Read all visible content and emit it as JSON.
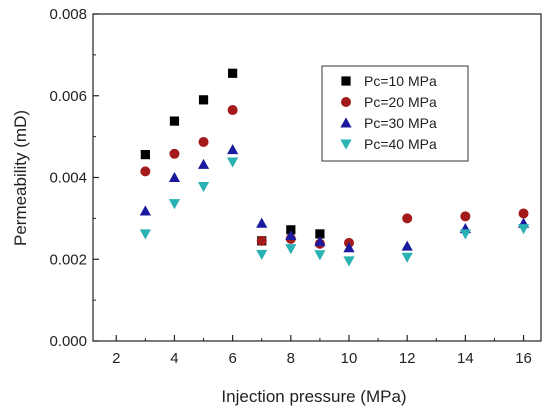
{
  "chart_data": {
    "type": "scatter",
    "title": "",
    "xlabel": "Injection pressure (MPa)",
    "ylabel": "Permeability (mD)",
    "xlim": [
      1.2,
      16.6
    ],
    "ylim": [
      0.0,
      0.008
    ],
    "xticks": [
      2,
      4,
      6,
      8,
      10,
      12,
      14,
      16
    ],
    "yticks": [
      0.0,
      0.002,
      0.004,
      0.006,
      0.008
    ],
    "ytick_labels": [
      "0.000",
      "0.002",
      "0.004",
      "0.006",
      "0.008"
    ],
    "grid": false,
    "legend_position": "top-right",
    "series": [
      {
        "name": "Pc=10 MPa",
        "marker": "square",
        "color": "#000000",
        "x": [
          3,
          4,
          5,
          6,
          7,
          8,
          9
        ],
        "y": [
          0.00456,
          0.00538,
          0.0059,
          0.00655,
          0.00245,
          0.00272,
          0.00262
        ]
      },
      {
        "name": "Pc=20 MPa",
        "marker": "circle",
        "color": "#a31a1a",
        "x": [
          3,
          4,
          5,
          6,
          7,
          8,
          9,
          10,
          12,
          14,
          16
        ],
        "y": [
          0.00415,
          0.00458,
          0.00487,
          0.00565,
          0.00245,
          0.0025,
          0.00238,
          0.0024,
          0.003,
          0.00305,
          0.00312
        ]
      },
      {
        "name": "Pc=30 MPa",
        "marker": "triangle-up",
        "color": "#1a1a9e",
        "x": [
          3,
          4,
          5,
          6,
          7,
          8,
          9,
          10,
          12,
          14,
          16
        ],
        "y": [
          0.00318,
          0.004,
          0.00432,
          0.00468,
          0.00288,
          0.00258,
          0.00243,
          0.00228,
          0.00232,
          0.00275,
          0.00288
        ]
      },
      {
        "name": "Pc=40 MPa",
        "marker": "triangle-down",
        "color": "#2ab1b1",
        "x": [
          3,
          4,
          5,
          6,
          7,
          8,
          9,
          10,
          12,
          14,
          16
        ],
        "y": [
          0.00262,
          0.00336,
          0.00378,
          0.00438,
          0.00212,
          0.00226,
          0.00211,
          0.00196,
          0.00205,
          0.00262,
          0.00275
        ]
      }
    ]
  }
}
